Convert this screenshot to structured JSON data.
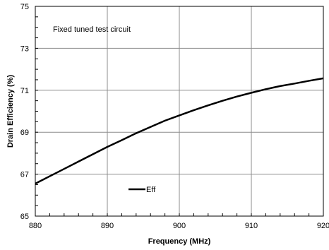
{
  "chart_data": {
    "type": "line",
    "title": "",
    "xlabel": "Frequency (MHz)",
    "ylabel": "Drain Efficiency (%)",
    "xlim": [
      880,
      920
    ],
    "ylim": [
      65,
      75
    ],
    "x_ticks": [
      880,
      890,
      900,
      910,
      920
    ],
    "y_ticks": [
      65,
      67,
      69,
      71,
      73,
      75
    ],
    "x_tick_labels": [
      "880",
      "890",
      "900",
      "910",
      "920"
    ],
    "y_tick_labels": [
      "65",
      "67",
      "69",
      "71",
      "73",
      "75"
    ],
    "grid": true,
    "annotation": "Fixed tuned test circuit",
    "legend_position": "lower-left",
    "series": [
      {
        "name": "Eff",
        "color": "#000000",
        "x": [
          880,
          882,
          884,
          886,
          888,
          890,
          892,
          894,
          896,
          898,
          900,
          902,
          904,
          906,
          908,
          910,
          912,
          914,
          916,
          918,
          920
        ],
        "y": [
          66.55,
          66.9,
          67.25,
          67.6,
          67.95,
          68.3,
          68.62,
          68.95,
          69.25,
          69.55,
          69.8,
          70.05,
          70.28,
          70.5,
          70.7,
          70.88,
          71.05,
          71.2,
          71.32,
          71.45,
          71.57
        ]
      }
    ]
  }
}
